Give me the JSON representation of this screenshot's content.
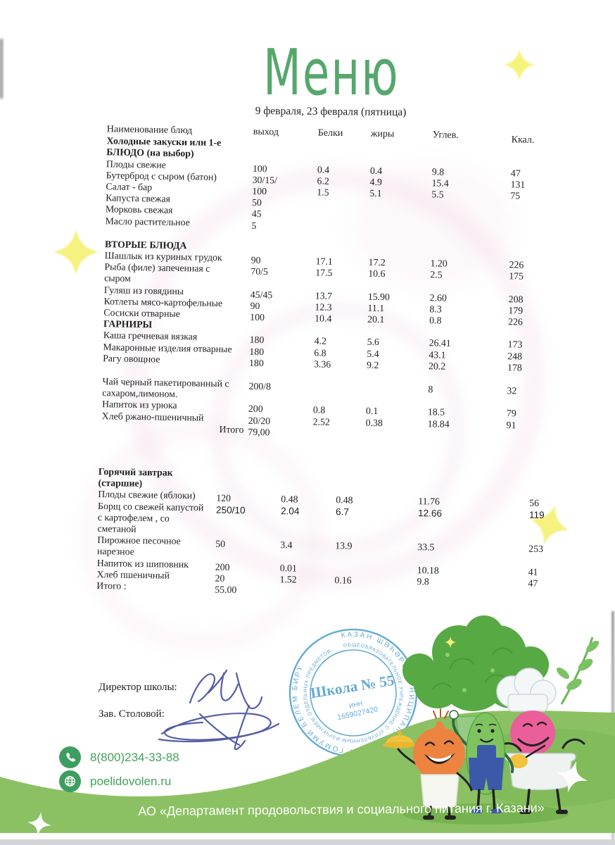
{
  "page": {
    "title": "Меню",
    "date_line": "9 февраля, 23 февраля (пятница)"
  },
  "table": {
    "columns": {
      "name": "Наименование блюд",
      "out": "выход",
      "protein": "Белки",
      "fat": "жиры",
      "carbs": "Углев.",
      "kcal": "Ккал."
    },
    "main_sections": [
      {
        "heading": "Холодные закуски или 1-е БЛЮДО  (на выбор)",
        "rows": [
          {
            "name": "Плоды свежие",
            "out": "100",
            "protein": "0.4",
            "fat": "0.4",
            "carbs": "9.8",
            "kcal": "47"
          },
          {
            "name": "Бутерброд с сыром (батон)",
            "out": "30/15/",
            "protein": "6.2",
            "fat": "4.9",
            "carbs": "15.4",
            "kcal": "131"
          },
          {
            "name": "Салат - бар",
            "out": "100",
            "protein": "1.5",
            "fat": "5.1",
            "carbs": "5.5",
            "kcal": "75"
          },
          {
            "name": "Капуста свежая",
            "out": "50"
          },
          {
            "name": "Морковь свежая",
            "out": "45"
          },
          {
            "name": "Масло растительное",
            "out": "5"
          }
        ]
      },
      {
        "heading": "ВТОРЫЕ БЛЮДА",
        "gap": true,
        "rows": [
          {
            "name": "Шашлык из куриных грудок",
            "out": "90",
            "protein": "17.1",
            "fat": "17.2",
            "carbs": "1.20",
            "kcal": "226"
          },
          {
            "name": "Рыба (филе) запеченная  с сыром",
            "out": "70/5",
            "protein": "17.5",
            "fat": "10.6",
            "carbs": "2.5",
            "kcal": "175"
          },
          {
            "name": "Гуляш из говядины",
            "out": "45/45",
            "protein": "13.7",
            "fat": "15.90",
            "carbs": "2.60",
            "kcal": "208"
          },
          {
            "name": "Котлеты мясо-картофельные",
            "out": "90",
            "protein": "12.3",
            "fat": "11.1",
            "carbs": "8.3",
            "kcal": "179"
          },
          {
            "name": "Сосиски отварные",
            "out": "100",
            "protein": "10.4",
            "fat": "20.1",
            "carbs": "0.8",
            "kcal": "226"
          }
        ]
      },
      {
        "heading": "ГАРНИРЫ",
        "rows": [
          {
            "name": "Каша гречневая вязкая",
            "out": "180",
            "protein": "4.2",
            "fat": "5.6",
            "carbs": "26.41",
            "kcal": "173"
          },
          {
            "name": "Макаронные изделия отварные",
            "out": "180",
            "protein": "6.8",
            "fat": "5.4",
            "carbs": "43.1",
            "kcal": "248"
          },
          {
            "name": "Рагу овощное",
            "out": "180",
            "protein": "3.36",
            "fat": "9.2",
            "carbs": "20.2",
            "kcal": "178"
          }
        ]
      },
      {
        "heading": "",
        "gap": true,
        "rows": [
          {
            "name": "Чай черный пакетированный с сахаром,лимоном.",
            "out": "200/8",
            "carbs": "8",
            "kcal": "32"
          },
          {
            "name": "Напиток из урюка",
            "out": "200",
            "protein": "0.8",
            "fat": "0.1",
            "carbs": "18.5",
            "kcal": "79"
          },
          {
            "name": "Хлеб ржано-пшеничный",
            "out": "20/20",
            "protein": "2.52",
            "fat": "0.38",
            "carbs": "18.84",
            "kcal": "91"
          },
          {
            "name": "Итого",
            "out": "79,00",
            "align": "right"
          }
        ]
      }
    ],
    "breakfast_sections": [
      {
        "heading": "Горячий завтрак (старшие)",
        "rows": [
          {
            "name": "Плоды свежие (яблоки)",
            "out": "120",
            "protein": "0.48",
            "fat": "0.48",
            "carbs": "11.76",
            "kcal": "56"
          },
          {
            "name": "Борщ  со свежей капустой с картофелем , со сметаной",
            "out": "250/10",
            "protein": "2.04",
            "fat": "6.7",
            "carbs": "12.66",
            "kcal": "119",
            "sans": true
          },
          {
            "name": "Пирожное песочное нарезное",
            "out": "50",
            "protein": "3.4",
            "fat": "13.9",
            "carbs": "33.5",
            "kcal": "253"
          },
          {
            "name": "Напиток из шиповник",
            "out": "200",
            "protein": "0.01",
            "carbs": "10.18",
            "kcal": "41"
          },
          {
            "name": "Хлеб пшеничный",
            "out": "20",
            "protein": "1.52",
            "fat": "0.16",
            "carbs": "9.8",
            "kcal": "47"
          },
          {
            "name": "Итого :",
            "out": "55.00"
          }
        ]
      }
    ]
  },
  "signatures": {
    "director_label": "Директор школы:",
    "canteen_label": "Зав. Столовой:"
  },
  "stamp": {
    "center": "Школа № 55",
    "inn_label": "ИНН",
    "inn_value": "1659027420",
    "ring_outer": "КАЗАН ШӘҺӘРЕ МУНИЦИПАЛЬ БЮДЖЕТ ГОМУМИ БЕЛЕМ БИРҮ",
    "ring_inner": "ОБЩЕОБРАЗОВАТЕЛЬНОЕ УЧРЕЖДЕНИЕ С УГЛУБЛЕННЫМ ИЗУЧЕНИЕМ ОТДЕЛЬНЫХ ПРЕДМЕТОВ"
  },
  "contacts": {
    "phone": "8(800)234-33-88",
    "site": "poelidovolen.ru"
  },
  "footer": {
    "text": "АО «Департамент продовольствия и социального питания г. Казани»"
  },
  "colors": {
    "title_green": "#55a76b",
    "footer_green": "#8cc163",
    "contact_green": "#43a35b",
    "icon_green": "#3d9e5f",
    "stamp_blue": "#4f9fd0",
    "signature_ink": "#565da8",
    "sparkle_yellow": "#f6f37d"
  }
}
